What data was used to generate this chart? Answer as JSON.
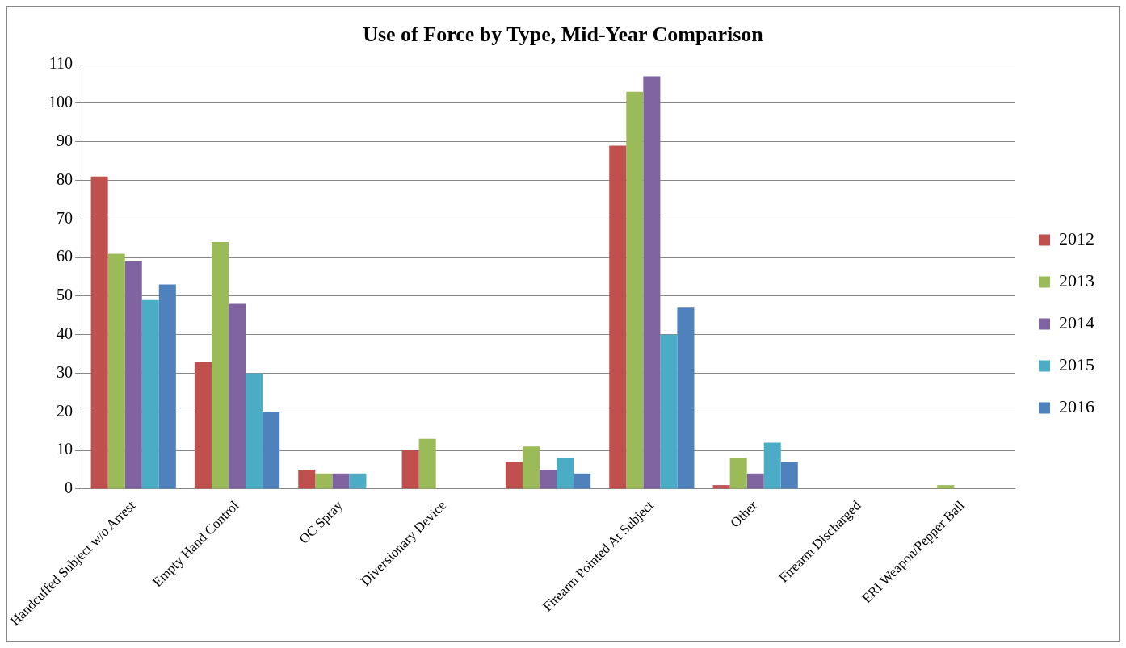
{
  "chart_data": {
    "type": "bar",
    "title": "Use of Force by Type, Mid-Year Comparison",
    "categories": [
      "Handcuffed Subject w/o Arrest",
      "Empty Hand Control",
      "OC Spray",
      "Diversionary Device",
      null,
      "Firearm Pointed At Subject",
      "Other",
      "Firearm Discharged",
      "ERI Weapon/Pepper Ball"
    ],
    "series": [
      {
        "name": "2012",
        "color": "#c0504d",
        "values": [
          81,
          33,
          5,
          10,
          7,
          89,
          1,
          0,
          0
        ]
      },
      {
        "name": "2013",
        "color": "#9bbb59",
        "values": [
          61,
          64,
          4,
          13,
          11,
          103,
          8,
          0,
          1
        ]
      },
      {
        "name": "2014",
        "color": "#8064a2",
        "values": [
          59,
          48,
          4,
          0,
          5,
          107,
          4,
          0,
          0
        ]
      },
      {
        "name": "2015",
        "color": "#4bacc6",
        "values": [
          49,
          30,
          4,
          0,
          8,
          40,
          12,
          0,
          0
        ]
      },
      {
        "name": "2016",
        "color": "#4f81bd",
        "values": [
          53,
          20,
          0,
          0,
          4,
          47,
          7,
          0,
          0
        ]
      }
    ],
    "ylim": [
      0,
      110
    ],
    "yticks": [
      0,
      10,
      20,
      30,
      40,
      50,
      60,
      70,
      80,
      90,
      100,
      110
    ],
    "grid": "y",
    "legend": "right"
  }
}
